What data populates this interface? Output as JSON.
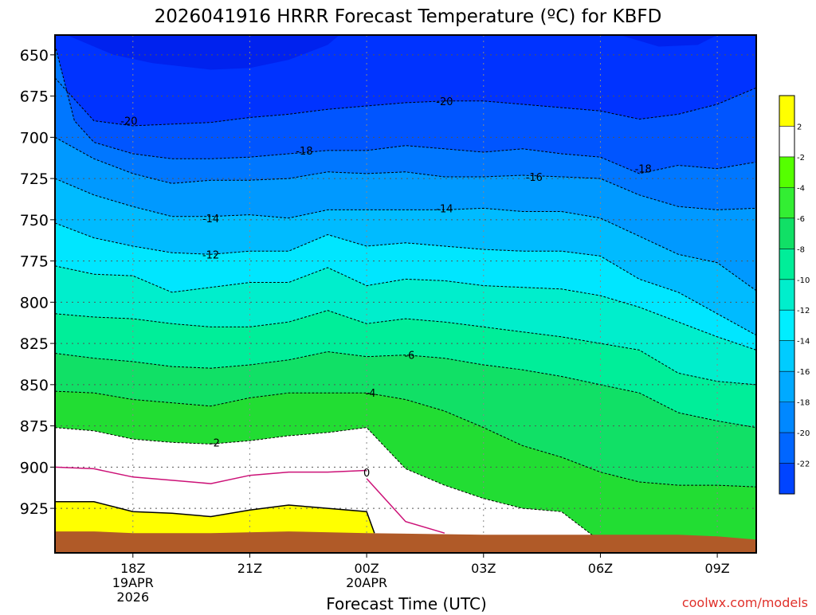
{
  "chart_data": {
    "type": "contour",
    "title": "2026041916 HRRR Forecast Temperature (ºC) for KBFD",
    "xlabel": "Forecast Time (UTC)",
    "credit": "coolwx.com/models",
    "x_ticks": [
      {
        "hour": 18,
        "lines": [
          "18Z",
          "19APR",
          "2026"
        ]
      },
      {
        "hour": 21,
        "lines": [
          "21Z"
        ]
      },
      {
        "hour": 24,
        "lines": [
          "00Z",
          "20APR"
        ]
      },
      {
        "hour": 27,
        "lines": [
          "03Z"
        ]
      },
      {
        "hour": 30,
        "lines": [
          "06Z"
        ]
      },
      {
        "hour": 33,
        "lines": [
          "09Z"
        ]
      }
    ],
    "x_range_hours": [
      16,
      34
    ],
    "y_ticks": [
      "650",
      "675",
      "700",
      "725",
      "750",
      "775",
      "800",
      "825",
      "850",
      "875",
      "900",
      "925"
    ],
    "y_range_hPa": [
      638,
      952
    ],
    "y_units": "hPa",
    "grid": true,
    "colorbar": {
      "levels": [
        "2",
        "-2",
        "-4",
        "-6",
        "-8",
        "-10",
        "-12",
        "-14",
        "-16",
        "-18",
        "-20",
        "-22"
      ],
      "colors": [
        "#ffff00",
        "#ffffff",
        "#55ff00",
        "#33ee33",
        "#11e066",
        "#00ee99",
        "#00eecc",
        "#00eeff",
        "#00ccff",
        "#00aaff",
        "#0088ff",
        "#0066ff",
        "#0044ff",
        "#0022ff"
      ]
    },
    "terrain_color": "#b05a28",
    "zero_line_color": "#cc1177",
    "contours": [
      {
        "label": "-20",
        "points": [
          [
            16,
            664
          ],
          [
            17,
            690
          ],
          [
            18,
            693
          ],
          [
            19,
            692
          ],
          [
            20,
            691
          ],
          [
            21,
            688
          ],
          [
            22,
            686
          ],
          [
            23,
            683
          ],
          [
            24,
            681
          ],
          [
            25,
            679
          ],
          [
            26,
            678
          ],
          [
            27,
            678
          ],
          [
            28,
            680
          ],
          [
            29,
            682
          ],
          [
            30,
            684
          ],
          [
            31,
            689
          ],
          [
            32,
            686
          ],
          [
            33,
            680
          ],
          [
            34,
            670
          ]
        ],
        "labels_at": [
          [
            17.9,
            690
          ],
          [
            26.0,
            678
          ]
        ]
      },
      {
        "label": "-18",
        "points": [
          [
            16,
            644
          ],
          [
            16.5,
            690
          ],
          [
            17,
            703
          ],
          [
            18,
            710
          ],
          [
            19,
            713
          ],
          [
            20,
            713
          ],
          [
            21,
            712
          ],
          [
            22,
            710
          ],
          [
            23,
            708
          ],
          [
            24,
            708
          ],
          [
            25,
            705
          ],
          [
            26,
            707
          ],
          [
            27,
            709
          ],
          [
            28,
            707
          ],
          [
            29,
            710
          ],
          [
            30,
            712
          ],
          [
            31,
            722
          ],
          [
            32,
            717
          ],
          [
            33,
            719
          ],
          [
            34,
            715
          ]
        ],
        "labels_at": [
          [
            22.4,
            708
          ],
          [
            31.1,
            719
          ]
        ]
      },
      {
        "label": "-16",
        "points": [
          [
            16,
            700
          ],
          [
            17,
            713
          ],
          [
            18,
            722
          ],
          [
            19,
            728
          ],
          [
            20,
            726
          ],
          [
            21,
            726
          ],
          [
            22,
            725
          ],
          [
            23,
            721
          ],
          [
            24,
            722
          ],
          [
            25,
            721
          ],
          [
            26,
            724
          ],
          [
            27,
            724
          ],
          [
            28,
            723
          ],
          [
            29,
            724
          ],
          [
            30,
            725
          ],
          [
            31,
            735
          ],
          [
            32,
            742
          ],
          [
            33,
            744
          ],
          [
            34,
            743
          ]
        ],
        "labels_at": [
          [
            28.3,
            724
          ]
        ]
      },
      {
        "label": "-14",
        "points": [
          [
            16,
            725
          ],
          [
            17,
            735
          ],
          [
            18,
            742
          ],
          [
            19,
            748
          ],
          [
            20,
            748
          ],
          [
            21,
            747
          ],
          [
            22,
            749
          ],
          [
            23,
            744
          ],
          [
            24,
            744
          ],
          [
            25,
            744
          ],
          [
            26,
            744
          ],
          [
            27,
            743
          ],
          [
            28,
            745
          ],
          [
            29,
            745
          ],
          [
            30,
            749
          ],
          [
            31,
            760
          ],
          [
            32,
            771
          ],
          [
            33,
            776
          ],
          [
            34,
            793
          ]
        ],
        "labels_at": [
          [
            20.0,
            749
          ],
          [
            26.0,
            743
          ]
        ]
      },
      {
        "label": "-12",
        "points": [
          [
            16,
            752
          ],
          [
            17,
            761
          ],
          [
            18,
            766
          ],
          [
            19,
            770
          ],
          [
            20,
            771
          ],
          [
            21,
            769
          ],
          [
            22,
            769
          ],
          [
            23,
            759
          ],
          [
            24,
            766
          ],
          [
            25,
            764
          ],
          [
            26,
            766
          ],
          [
            27,
            768
          ],
          [
            28,
            769
          ],
          [
            29,
            769
          ],
          [
            30,
            772
          ],
          [
            31,
            786
          ],
          [
            32,
            794
          ],
          [
            33,
            807
          ],
          [
            34,
            820
          ]
        ],
        "labels_at": [
          [
            20.0,
            771
          ]
        ]
      },
      {
        "label": "-10",
        "points": [
          [
            16,
            778
          ],
          [
            17,
            783
          ],
          [
            18,
            784
          ],
          [
            19,
            794
          ],
          [
            20,
            791
          ],
          [
            21,
            788
          ],
          [
            22,
            788
          ],
          [
            23,
            779
          ],
          [
            24,
            790
          ],
          [
            25,
            786
          ],
          [
            26,
            787
          ],
          [
            27,
            790
          ],
          [
            28,
            791
          ],
          [
            29,
            792
          ],
          [
            30,
            796
          ],
          [
            31,
            803
          ],
          [
            32,
            812
          ],
          [
            33,
            821
          ],
          [
            34,
            829
          ]
        ],
        "labels_at": []
      },
      {
        "label": "-8",
        "points": [
          [
            16,
            807
          ],
          [
            17,
            809
          ],
          [
            18,
            810
          ],
          [
            19,
            813
          ],
          [
            20,
            815
          ],
          [
            21,
            815
          ],
          [
            22,
            812
          ],
          [
            23,
            805
          ],
          [
            24,
            813
          ],
          [
            25,
            810
          ],
          [
            26,
            812
          ],
          [
            27,
            815
          ],
          [
            28,
            818
          ],
          [
            29,
            821
          ],
          [
            30,
            825
          ],
          [
            31,
            829
          ],
          [
            32,
            843
          ],
          [
            33,
            848
          ],
          [
            34,
            850
          ]
        ],
        "labels_at": []
      },
      {
        "label": "-6",
        "points": [
          [
            16,
            831
          ],
          [
            17,
            834
          ],
          [
            18,
            836
          ],
          [
            19,
            839
          ],
          [
            20,
            840
          ],
          [
            21,
            838
          ],
          [
            22,
            835
          ],
          [
            23,
            830
          ],
          [
            24,
            833
          ],
          [
            25,
            832
          ],
          [
            26,
            834
          ],
          [
            27,
            838
          ],
          [
            28,
            841
          ],
          [
            29,
            845
          ],
          [
            30,
            850
          ],
          [
            31,
            855
          ],
          [
            32,
            867
          ],
          [
            33,
            872
          ],
          [
            34,
            876
          ]
        ],
        "labels_at": [
          [
            25.1,
            832
          ]
        ]
      },
      {
        "label": "-4",
        "points": [
          [
            16,
            854
          ],
          [
            17,
            855
          ],
          [
            18,
            859
          ],
          [
            19,
            861
          ],
          [
            20,
            863
          ],
          [
            21,
            858
          ],
          [
            22,
            855
          ],
          [
            23,
            855
          ],
          [
            24,
            855
          ],
          [
            25,
            859
          ],
          [
            26,
            866
          ],
          [
            27,
            876
          ],
          [
            28,
            887
          ],
          [
            29,
            894
          ],
          [
            30,
            903
          ],
          [
            31,
            909
          ],
          [
            32,
            911
          ],
          [
            33,
            911
          ],
          [
            34,
            912
          ]
        ],
        "labels_at": [
          [
            24.1,
            855
          ]
        ]
      },
      {
        "label": "-2",
        "points": [
          [
            16,
            876
          ],
          [
            17,
            878
          ],
          [
            18,
            883
          ],
          [
            19,
            885
          ],
          [
            20,
            886
          ],
          [
            21,
            884
          ],
          [
            22,
            881
          ],
          [
            23,
            879
          ],
          [
            24,
            876
          ],
          [
            25,
            901
          ],
          [
            26,
            911
          ],
          [
            27,
            919
          ],
          [
            28,
            925
          ],
          [
            29,
            927
          ],
          [
            30,
            945
          ]
        ],
        "labels_at": [
          [
            20.1,
            885
          ]
        ]
      }
    ],
    "zero_line": {
      "label": "0",
      "points": [
        [
          16,
          900
        ],
        [
          17,
          901
        ],
        [
          18,
          906
        ],
        [
          19,
          908
        ],
        [
          20,
          910
        ],
        [
          21,
          905
        ],
        [
          22,
          903
        ],
        [
          23,
          903
        ],
        [
          24,
          902
        ]
      ],
      "tail": [
        [
          24,
          907
        ],
        [
          25,
          933
        ],
        [
          26,
          940
        ]
      ]
    },
    "yellow_region_top": [
      [
        16,
        921
      ],
      [
        17,
        921
      ],
      [
        18,
        927
      ],
      [
        19,
        928
      ],
      [
        20,
        930
      ],
      [
        21,
        926
      ],
      [
        22,
        923
      ],
      [
        23,
        925
      ],
      [
        24,
        927
      ],
      [
        24.2,
        940
      ]
    ],
    "terrain_top": [
      [
        16,
        939
      ],
      [
        17,
        939
      ],
      [
        18,
        940
      ],
      [
        20,
        940
      ],
      [
        22,
        939
      ],
      [
        24,
        940
      ],
      [
        27,
        941
      ],
      [
        30,
        941
      ],
      [
        32,
        941
      ],
      [
        33,
        942
      ],
      [
        34,
        944
      ]
    ]
  }
}
